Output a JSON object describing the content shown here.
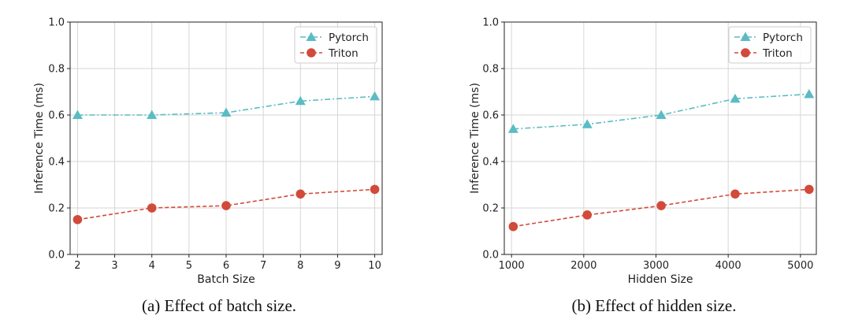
{
  "chart_data": [
    {
      "type": "line",
      "caption": "(a) Effect of batch size.",
      "xlabel": "Batch Size",
      "ylabel": "Inference Time (ms)",
      "xlim": [
        1.8,
        10.2
      ],
      "xticks": [
        2,
        3,
        4,
        5,
        6,
        7,
        8,
        9,
        10
      ],
      "ylim": [
        0.0,
        1.0
      ],
      "yticks": [
        0.0,
        0.2,
        0.4,
        0.6,
        0.8,
        1.0
      ],
      "grid": true,
      "legend": "top-right",
      "x": [
        2,
        4,
        6,
        8,
        10
      ],
      "series": [
        {
          "name": "Pytorch",
          "marker": "triangle",
          "linestyle": "dash-dot",
          "color": "#5bbcc3",
          "values": [
            0.6,
            0.6,
            0.61,
            0.66,
            0.68
          ]
        },
        {
          "name": "Triton",
          "marker": "circle",
          "linestyle": "dashed",
          "color": "#d24a3a",
          "values": [
            0.15,
            0.2,
            0.21,
            0.26,
            0.28
          ]
        }
      ]
    },
    {
      "type": "line",
      "caption": "(b) Effect of hidden size.",
      "xlabel": "Hidden Size",
      "ylabel": "Inference Time (ms)",
      "xlim": [
        900,
        5220
      ],
      "xticks": [
        1000,
        2000,
        3000,
        4000,
        5000
      ],
      "ylim": [
        0.0,
        1.0
      ],
      "yticks": [
        0.0,
        0.2,
        0.4,
        0.6,
        0.8,
        1.0
      ],
      "grid": true,
      "legend": "top-right",
      "x": [
        1024,
        2048,
        3072,
        4096,
        5120
      ],
      "series": [
        {
          "name": "Pytorch",
          "marker": "triangle",
          "linestyle": "dash-dot",
          "color": "#5bbcc3",
          "values": [
            0.54,
            0.56,
            0.6,
            0.67,
            0.69
          ]
        },
        {
          "name": "Triton",
          "marker": "circle",
          "linestyle": "dashed",
          "color": "#d24a3a",
          "values": [
            0.12,
            0.17,
            0.21,
            0.26,
            0.28
          ]
        }
      ]
    }
  ]
}
